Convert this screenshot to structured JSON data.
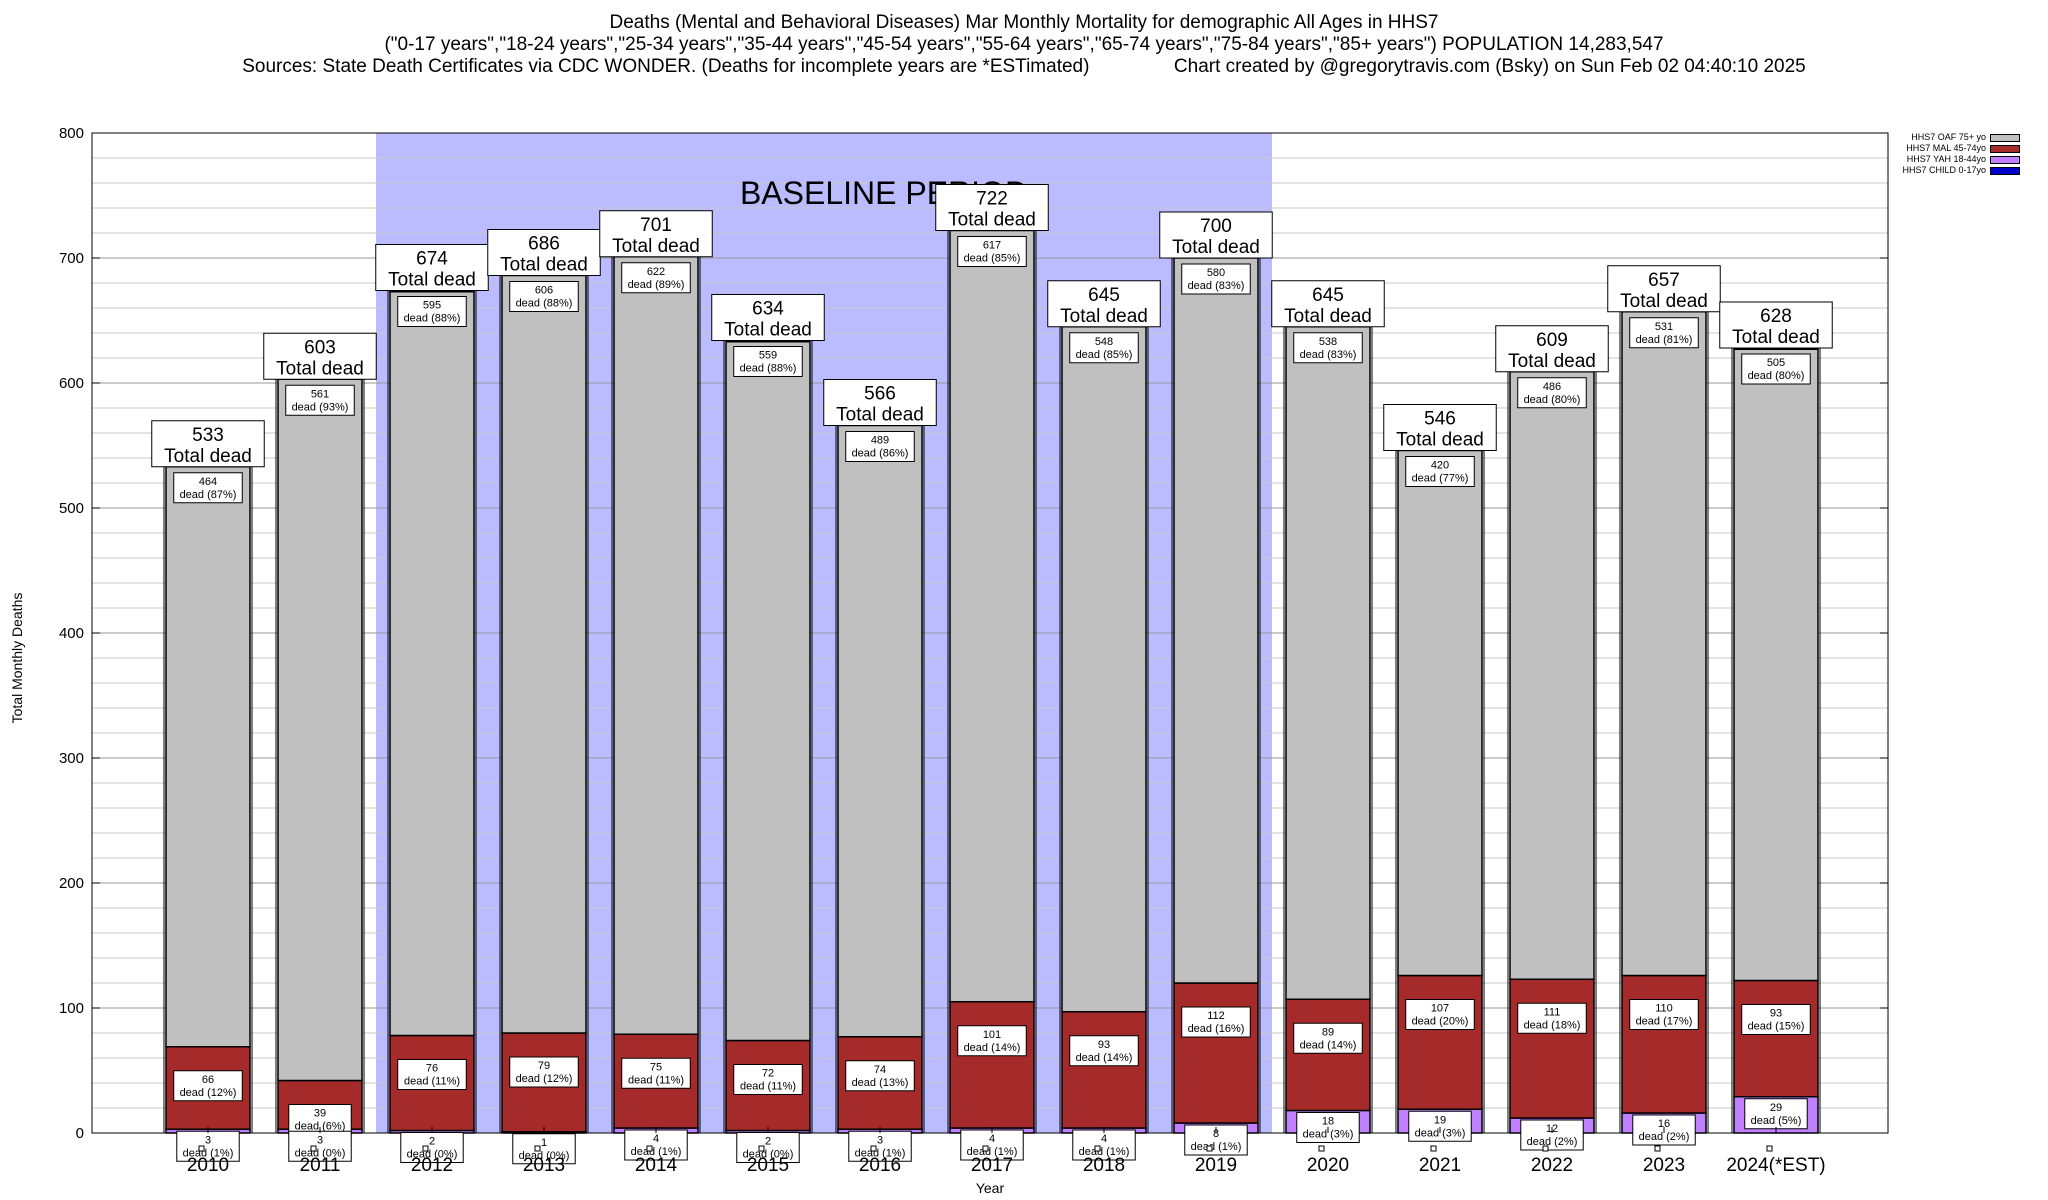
{
  "header": {
    "title": "Deaths (Mental and Behavioral Diseases) Mar Monthly Mortality for demographic All Ages in HHS7",
    "age_groups": "(\"0-17 years\",\"18-24 years\",\"25-34 years\",\"35-44 years\",\"45-54 years\",\"55-64 years\",\"65-74 years\",\"75-84 years\",\"85+ years\") POPULATION 14,283,547",
    "sources": "Sources: State Death Certificates via CDC WONDER. (Deaths for incomplete years are *ESTimated)",
    "credit": "Chart created by @gregorytravis.com (Bsky) on Sun Feb 02 04:40:10 2025"
  },
  "colors": {
    "oaf": "#c0c0c0",
    "mal": "#a52a2a",
    "yah": "#c080ff",
    "child": "#0000cd",
    "baseline": "#bbbbff"
  },
  "chart_data": {
    "type": "bar",
    "stacked": true,
    "xlabel": "Year",
    "ylabel": "Total Monthly Deaths",
    "ylim": [
      0,
      800
    ],
    "yticks": [
      0,
      100,
      200,
      300,
      400,
      500,
      600,
      700,
      800
    ],
    "grid": true,
    "legend_position": "top-right",
    "baseline_label": "BASELINE PERIOD",
    "baseline_range": [
      "2012",
      "2019"
    ],
    "total_label": "Total dead",
    "dead_word": "dead",
    "categories": [
      "2010",
      "2011",
      "2012",
      "2013",
      "2014",
      "2015",
      "2016",
      "2017",
      "2018",
      "2019",
      "2020",
      "2021",
      "2022",
      "2023",
      "2024(*EST)"
    ],
    "totals": [
      533,
      603,
      674,
      686,
      701,
      634,
      566,
      722,
      645,
      700,
      645,
      546,
      609,
      657,
      628
    ],
    "series": [
      {
        "name": "HHS7 CHILD 0-17yo",
        "key": "child",
        "values": [
          0,
          0,
          0,
          0,
          0,
          0,
          0,
          0,
          0,
          0,
          0,
          0,
          0,
          0,
          0
        ]
      },
      {
        "name": "HHS7 YAH 18-44yo",
        "key": "yah",
        "values": [
          3,
          3,
          2,
          1,
          4,
          2,
          3,
          4,
          4,
          8,
          18,
          19,
          12,
          16,
          29
        ],
        "pct": [
          "1%",
          "0%",
          "0%",
          "0%",
          "1%",
          "0%",
          "1%",
          "1%",
          "1%",
          "1%",
          "3%",
          "3%",
          "2%",
          "2%",
          "5%"
        ]
      },
      {
        "name": "HHS7 MAL 45-74yo",
        "key": "mal",
        "values": [
          66,
          39,
          76,
          79,
          75,
          72,
          74,
          101,
          93,
          112,
          89,
          107,
          111,
          110,
          93
        ],
        "pct": [
          "12%",
          "6%",
          "11%",
          "12%",
          "11%",
          "11%",
          "13%",
          "14%",
          "14%",
          "16%",
          "14%",
          "20%",
          "18%",
          "17%",
          "15%"
        ]
      },
      {
        "name": "HHS7 OAF 75+ yo",
        "key": "oaf",
        "values": [
          464,
          561,
          595,
          606,
          622,
          559,
          489,
          617,
          548,
          580,
          538,
          420,
          486,
          531,
          505
        ],
        "pct": [
          "87%",
          "93%",
          "88%",
          "88%",
          "89%",
          "88%",
          "86%",
          "85%",
          "85%",
          "83%",
          "83%",
          "77%",
          "80%",
          "81%",
          "80%"
        ]
      }
    ],
    "legend": [
      {
        "name": "HHS7 OAF 75+ yo",
        "key": "oaf"
      },
      {
        "name": "HHS7 MAL 45-74yo",
        "key": "mal"
      },
      {
        "name": "HHS7 YAH 18-44yo",
        "key": "yah"
      },
      {
        "name": "HHS7 CHILD 0-17yo",
        "key": "child"
      }
    ]
  }
}
